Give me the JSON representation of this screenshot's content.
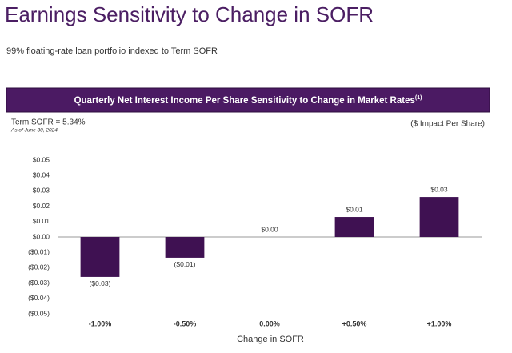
{
  "header": {
    "title": "Earnings Sensitivity to Change in SOFR",
    "subtitle": "99% floating-rate loan portfolio indexed to Term SOFR"
  },
  "chart_data": {
    "type": "bar",
    "title": "Quarterly Net Interest Income Per Share Sensitivity to Change in Market Rates",
    "title_note": "(1)",
    "subtitle": "Term SOFR = 5.34%",
    "note": "As of June 30, 2024",
    "y_label": "($ Impact Per Share)",
    "x_label": "Change in SOFR",
    "categories": [
      "-1.00%",
      "-0.50%",
      "0.00%",
      "+0.50%",
      "+1.00%"
    ],
    "values": [
      -0.026,
      -0.0135,
      0,
      0.013,
      0.026
    ],
    "value_labels": [
      "($0.03)",
      "($0.01)",
      "$0.00",
      "$0.01",
      "$0.03"
    ],
    "color": "#3f1152",
    "ylim": [
      -0.05,
      0.05
    ],
    "yticks": [
      {
        "value": 0.05,
        "label": "$0.05"
      },
      {
        "value": 0.04,
        "label": "$0.04"
      },
      {
        "value": 0.03,
        "label": "$0.03"
      },
      {
        "value": 0.02,
        "label": "$0.02"
      },
      {
        "value": 0.01,
        "label": "$0.01"
      },
      {
        "value": 0,
        "label": "$0.00"
      },
      {
        "value": -0.01,
        "label": "($0.01)"
      },
      {
        "value": -0.02,
        "label": "($0.02)"
      },
      {
        "value": -0.03,
        "label": "($0.03)"
      },
      {
        "value": -0.04,
        "label": "($0.04)"
      },
      {
        "value": -0.05,
        "label": "($0.05)"
      }
    ],
    "grid": false
  }
}
